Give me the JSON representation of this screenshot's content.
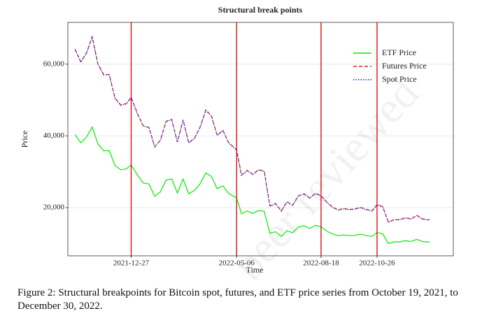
{
  "chart_data": {
    "type": "line",
    "title": "Structural break points",
    "x_label": "Time",
    "y_label": "Price",
    "x": [
      "2021-10-19",
      "2021-10-26",
      "2021-11-02",
      "2021-11-09",
      "2021-11-16",
      "2021-11-23",
      "2021-11-30",
      "2021-12-07",
      "2021-12-14",
      "2021-12-21",
      "2021-12-27",
      "2022-01-04",
      "2022-01-11",
      "2022-01-18",
      "2022-01-25",
      "2022-02-01",
      "2022-02-08",
      "2022-02-15",
      "2022-02-22",
      "2022-03-01",
      "2022-03-08",
      "2022-03-15",
      "2022-03-22",
      "2022-03-29",
      "2022-04-05",
      "2022-04-12",
      "2022-04-19",
      "2022-04-26",
      "2022-05-06",
      "2022-05-12",
      "2022-05-19",
      "2022-05-26",
      "2022-06-02",
      "2022-06-09",
      "2022-06-16",
      "2022-06-23",
      "2022-06-30",
      "2022-07-07",
      "2022-07-14",
      "2022-07-21",
      "2022-07-28",
      "2022-08-04",
      "2022-08-11",
      "2022-08-18",
      "2022-08-25",
      "2022-09-01",
      "2022-09-08",
      "2022-09-15",
      "2022-09-22",
      "2022-09-29",
      "2022-10-06",
      "2022-10-13",
      "2022-10-20",
      "2022-10-26",
      "2022-11-02",
      "2022-11-09",
      "2022-11-16",
      "2022-11-23",
      "2022-11-30",
      "2022-12-07",
      "2022-12-14",
      "2022-12-21",
      "2022-12-30"
    ],
    "series": [
      {
        "name": "ETF Price",
        "color": "#00ee00",
        "dash": "none",
        "values": [
          40300,
          38100,
          39700,
          42500,
          37800,
          35900,
          35900,
          31800,
          30600,
          30800,
          31900,
          29000,
          26900,
          26600,
          23200,
          24400,
          27700,
          28000,
          24100,
          28000,
          23900,
          24800,
          26700,
          29700,
          28700,
          25300,
          26100,
          24000,
          22700,
          18300,
          19100,
          18400,
          19200,
          19000,
          12900,
          13300,
          12000,
          13600,
          13000,
          14600,
          15000,
          14200,
          15100,
          14700,
          13500,
          12700,
          12200,
          12400,
          12200,
          12300,
          12600,
          12200,
          12000,
          13100,
          12700,
          10000,
          10500,
          10500,
          10800,
          10600,
          11200,
          10600,
          10400
        ]
      },
      {
        "name": "Futures Price",
        "color": "#dd2222",
        "dash": "5 3",
        "values": [
          64200,
          60700,
          63200,
          67700,
          60100,
          57200,
          57100,
          50600,
          48700,
          49000,
          50800,
          46100,
          42800,
          42400,
          37000,
          38800,
          44100,
          44600,
          38300,
          44500,
          38100,
          39400,
          42500,
          47300,
          45600,
          40200,
          41600,
          38200,
          36100,
          29100,
          30400,
          29300,
          30600,
          30200,
          20500,
          21200,
          19100,
          21700,
          20700,
          23300,
          23900,
          22700,
          24000,
          23400,
          21600,
          20200,
          19400,
          19800,
          19500,
          19700,
          20100,
          19500,
          19200,
          20900,
          20300,
          16000,
          16700,
          16700,
          17200,
          16900,
          17900,
          16900,
          16600
        ]
      },
      {
        "name": "Spot Price",
        "color": "#2222cc",
        "dash": "1.5 2",
        "values": [
          64000,
          60500,
          63000,
          67500,
          60000,
          57000,
          57000,
          50500,
          48500,
          48900,
          50700,
          46000,
          42700,
          42300,
          36900,
          38700,
          44000,
          44500,
          38200,
          44400,
          38000,
          39300,
          42400,
          47100,
          45500,
          40100,
          41500,
          38100,
          36000,
          29000,
          30300,
          29200,
          30500,
          30100,
          20400,
          21100,
          19000,
          21600,
          20600,
          23200,
          23800,
          22600,
          23900,
          23300,
          21500,
          20100,
          19300,
          19700,
          19400,
          19600,
          20000,
          19400,
          19100,
          20800,
          20200,
          15900,
          16600,
          16600,
          17100,
          16800,
          17800,
          16800,
          16500
        ]
      }
    ],
    "breaks": [
      "2021-12-27",
      "2022-05-06",
      "2022-08-18",
      "2022-10-26"
    ],
    "break_color": "#dd0000",
    "xlim": [
      "2021-10-10",
      "2023-01-28"
    ],
    "xticks": [
      "2021-12-27",
      "2022-05-06",
      "2022-08-18",
      "2022-10-26"
    ],
    "ylim": [
      6600,
      71650
    ],
    "yticks": [
      {
        "value": 20000,
        "label": "20,000"
      },
      {
        "value": 40000,
        "label": "40,000"
      },
      {
        "value": 60000,
        "label": "60,000"
      }
    ],
    "grid": true,
    "legend": "top-right"
  },
  "caption": "Figure 2: Structural breakpoints for Bitcoin spot, futures, and ETF price series from October 19, 2021, to December 30, 2022.",
  "watermark": "peer reviewed"
}
